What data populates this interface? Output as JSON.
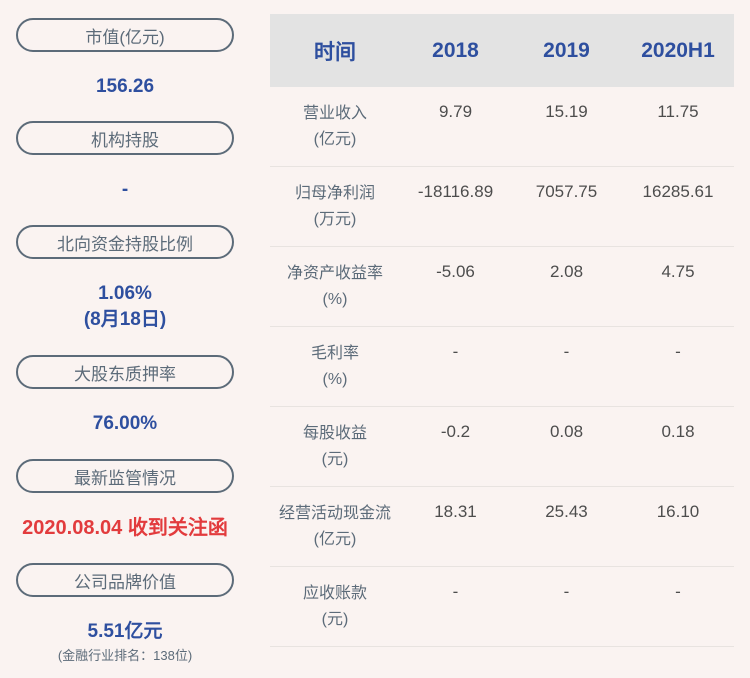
{
  "colors": {
    "page_bg": "#faf3f1",
    "slate_text": "#5c6b79",
    "accent_blue": "#2e4f9f",
    "alert_red": "#e23b3d",
    "table_header_bg": "#e3e3e3",
    "table_value_text": "#4d4d4d",
    "divider": "#e8e3e0"
  },
  "sidebar": {
    "items": [
      {
        "label": "市值(亿元)",
        "value": "156.26"
      },
      {
        "label": "机构持股",
        "value": "-"
      },
      {
        "label": "北向资金持股比例",
        "value": "1.06%",
        "note": "(8月18日)"
      },
      {
        "label": "大股东质押率",
        "value": "76.00%"
      },
      {
        "label": "最新监管情况",
        "value": "2020.08.04 收到关注函"
      },
      {
        "label": "公司品牌价值",
        "value": "5.51亿元",
        "note": "(金融行业排名：138位)"
      }
    ]
  },
  "table": {
    "header": [
      "时间",
      "2018",
      "2019",
      "2020H1"
    ],
    "rows": [
      {
        "label": "营业收入",
        "unit": "(亿元)",
        "values": [
          "9.79",
          "15.19",
          "11.75"
        ]
      },
      {
        "label": "归母净利润",
        "unit": "(万元)",
        "values": [
          "-18116.89",
          "7057.75",
          "16285.61"
        ]
      },
      {
        "label": "净资产收益率",
        "unit": "(%)",
        "values": [
          "-5.06",
          "2.08",
          "4.75"
        ]
      },
      {
        "label": "毛利率",
        "unit": "(%)",
        "values": [
          "-",
          "-",
          "-"
        ]
      },
      {
        "label": "每股收益",
        "unit": "(元)",
        "values": [
          "-0.2",
          "0.08",
          "0.18"
        ]
      },
      {
        "label": "经营活动现金流",
        "unit": "(亿元)",
        "values": [
          "18.31",
          "25.43",
          "16.10"
        ]
      },
      {
        "label": "应收账款",
        "unit": "(元)",
        "values": [
          "-",
          "-",
          "-"
        ]
      }
    ]
  },
  "chart_data": {
    "type": "table",
    "title": "",
    "columns": [
      "时间",
      "2018",
      "2019",
      "2020H1"
    ],
    "rows": [
      [
        "营业收入(亿元)",
        "9.79",
        "15.19",
        "11.75"
      ],
      [
        "归母净利润(万元)",
        "-18116.89",
        "7057.75",
        "16285.61"
      ],
      [
        "净资产收益率(%)",
        "-5.06",
        "2.08",
        "4.75"
      ],
      [
        "毛利率(%)",
        "-",
        "-",
        "-"
      ],
      [
        "每股收益(元)",
        "-0.2",
        "0.08",
        "0.18"
      ],
      [
        "经营活动现金流(亿元)",
        "18.31",
        "25.43",
        "16.10"
      ],
      [
        "应收账款(元)",
        "-",
        "-",
        "-"
      ]
    ],
    "stats": [
      {
        "label": "市值(亿元)",
        "value": "156.26"
      },
      {
        "label": "机构持股",
        "value": "-"
      },
      {
        "label": "北向资金持股比例",
        "value": "1.06%",
        "note": "(8月18日)"
      },
      {
        "label": "大股东质押率",
        "value": "76.00%"
      },
      {
        "label": "最新监管情况",
        "value": "2020.08.04 收到关注函"
      },
      {
        "label": "公司品牌价值",
        "value": "5.51亿元",
        "note": "(金融行业排名：138位)"
      }
    ]
  }
}
